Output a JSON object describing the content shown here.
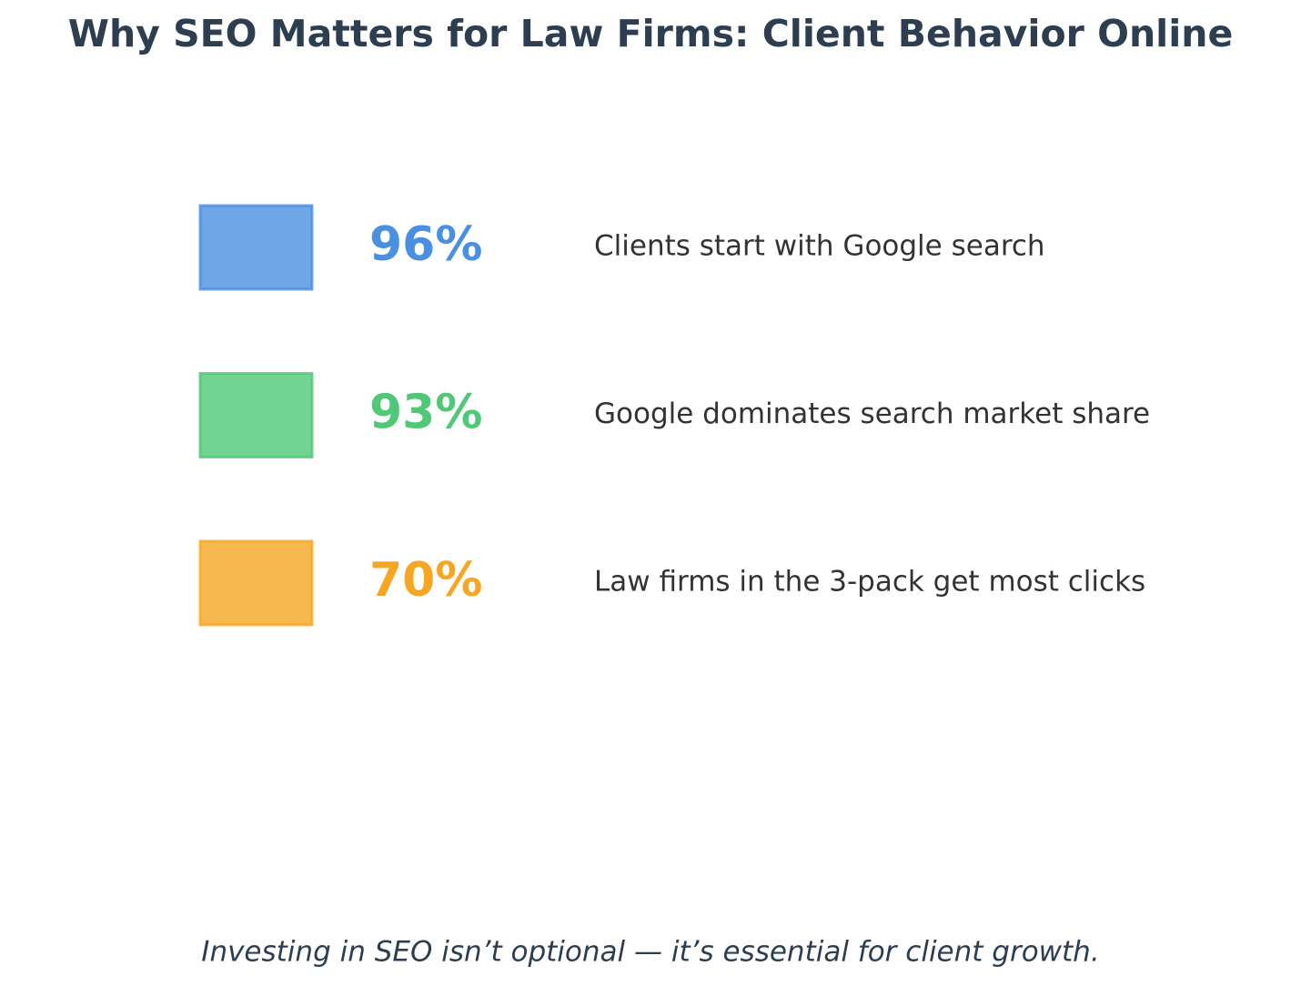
{
  "chart_data": {
    "type": "stat",
    "title": "Why SEO Matters for Law Firms: Client Behavior Online",
    "categories": [
      "Clients start with Google search",
      "Google dominates search market share",
      "Law firms in the 3-pack get most clicks"
    ],
    "values": [
      96,
      93,
      70
    ],
    "value_labels": [
      "96%",
      "93%",
      "70%"
    ],
    "colors": [
      "#4a90e2",
      "#50c878",
      "#f5a623"
    ],
    "footnote": "Investing in SEO isn’t optional — it’s essential for client growth."
  }
}
